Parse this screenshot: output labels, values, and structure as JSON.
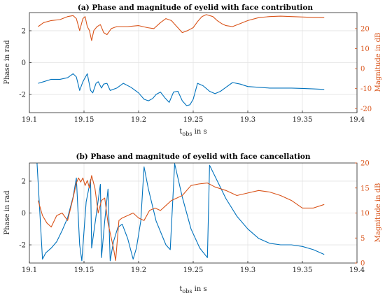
{
  "colors": {
    "left_series": "#0072bd",
    "right_series": "#d95319",
    "axes": "#262626",
    "grid": "#e3e3e3"
  },
  "chart_data": [
    {
      "type": "line",
      "title": "(a)  Phase and magnitude of eyelid with face contribution",
      "xlabel": "t",
      "xlabel_sub": "obs",
      "xlabel_suffix": " in s",
      "ylabel_left": "Phase in rad",
      "ylabel_right": "Magnitude in dB",
      "xlim": [
        19.1,
        19.4
      ],
      "xticks": [
        "19.1",
        "19.15",
        "19.2",
        "19.25",
        "19.3",
        "19.35",
        "19.4"
      ],
      "ylim_left": [
        -3.14,
        3.14
      ],
      "yticks_left": [
        "-2",
        "0",
        "2"
      ],
      "ylim_right": [
        -22,
        28
      ],
      "yticks_right": [
        "-20",
        "-10",
        "0",
        "10",
        "20"
      ],
      "grid": true,
      "series": [
        {
          "axis": "left",
          "x": [
            19.108,
            19.113,
            19.12,
            19.128,
            19.135,
            19.14,
            19.143,
            19.146,
            19.149,
            19.153,
            19.156,
            19.158,
            19.161,
            19.163,
            19.166,
            19.168,
            19.171,
            19.174,
            19.18,
            19.186,
            19.193,
            19.2,
            19.205,
            19.209,
            19.213,
            19.216,
            19.22,
            19.224,
            19.228,
            19.232,
            19.236,
            19.24,
            19.244,
            19.247,
            19.25,
            19.254,
            19.259,
            19.265,
            19.27,
            19.275,
            19.28,
            19.286,
            19.293,
            19.3,
            19.31,
            19.32,
            19.33,
            19.34,
            19.35,
            19.36,
            19.37
          ],
          "y": [
            -1.3,
            -1.2,
            -1.05,
            -1.05,
            -0.95,
            -0.7,
            -0.9,
            -1.75,
            -1.2,
            -0.7,
            -1.75,
            -1.9,
            -1.3,
            -1.2,
            -1.6,
            -1.35,
            -1.3,
            -1.75,
            -1.6,
            -1.3,
            -1.55,
            -1.9,
            -2.3,
            -2.4,
            -2.25,
            -2.0,
            -1.85,
            -2.2,
            -2.5,
            -1.85,
            -1.8,
            -2.4,
            -2.7,
            -2.65,
            -2.3,
            -1.3,
            -1.45,
            -1.8,
            -1.95,
            -1.8,
            -1.55,
            -1.25,
            -1.35,
            -1.5,
            -1.55,
            -1.6,
            -1.6,
            -1.6,
            -1.62,
            -1.65,
            -1.68
          ]
        },
        {
          "axis": "right",
          "x": [
            19.108,
            19.113,
            19.12,
            19.128,
            19.135,
            19.14,
            19.143,
            19.146,
            19.149,
            19.151,
            19.153,
            19.155,
            19.157,
            19.159,
            19.162,
            19.165,
            19.168,
            19.171,
            19.175,
            19.18,
            19.19,
            19.2,
            19.208,
            19.214,
            19.22,
            19.225,
            19.23,
            19.235,
            19.24,
            19.245,
            19.25,
            19.254,
            19.258,
            19.262,
            19.268,
            19.272,
            19.276,
            19.28,
            19.286,
            19.293,
            19.3,
            19.31,
            19.32,
            19.33,
            19.34,
            19.35,
            19.36,
            19.37
          ],
          "y": [
            21,
            23,
            24,
            24.5,
            26,
            26.5,
            25,
            19,
            25,
            26,
            21,
            19,
            14,
            19,
            21,
            22,
            18,
            17,
            20,
            21,
            21,
            21.5,
            20.5,
            20,
            23,
            25,
            24,
            21,
            18,
            19,
            20.5,
            23.5,
            26,
            27,
            26,
            24,
            22.5,
            21.5,
            21,
            22.5,
            24,
            25.5,
            26,
            26.2,
            26,
            25.8,
            25.6,
            25.5
          ]
        }
      ]
    },
    {
      "type": "line",
      "title": "(b) Phase and magnitude of eyelid with face cancellation",
      "xlabel": "t",
      "xlabel_sub": "obs",
      "xlabel_suffix": " in s",
      "ylabel_left": "Phase in rad",
      "ylabel_right": "Magnitude in dB",
      "xlim": [
        19.1,
        19.4
      ],
      "xticks": [
        "19.1",
        "19.15",
        "19.2",
        "19.25",
        "19.3",
        "19.35",
        "19.4"
      ],
      "ylim_left": [
        -3.14,
        3.14
      ],
      "yticks_left": [
        "-2",
        "0",
        "2"
      ],
      "ylim_right": [
        0,
        20
      ],
      "yticks_right": [
        "0",
        "5",
        "10",
        "15",
        "20"
      ],
      "grid": true,
      "series": [
        {
          "axis": "left",
          "x": [
            19.107,
            19.112,
            19.115,
            19.12,
            19.125,
            19.13,
            19.135,
            19.14,
            19.143,
            19.146,
            19.148,
            19.152,
            19.156,
            19.157,
            19.161,
            19.165,
            19.166,
            19.169,
            19.172,
            19.174,
            19.177,
            19.181,
            19.185,
            19.19,
            19.195,
            19.198,
            19.202,
            19.205,
            19.209,
            19.216,
            19.225,
            19.229,
            19.233,
            19.24,
            19.248,
            19.256,
            19.263,
            19.265,
            19.27,
            19.28,
            19.29,
            19.3,
            19.31,
            19.32,
            19.33,
            19.34,
            19.35,
            19.36,
            19.37
          ],
          "y": [
            3.14,
            -2.9,
            -2.5,
            -2.2,
            -1.8,
            -1.1,
            -0.3,
            1.0,
            2.2,
            -2.0,
            -3.0,
            0.7,
            2.1,
            -2.2,
            -0.2,
            1.8,
            -2.8,
            -0.5,
            1.5,
            -3.0,
            -1.8,
            -0.9,
            -0.7,
            -1.6,
            -2.9,
            -2.2,
            -0.5,
            2.9,
            1.5,
            -0.5,
            -2.0,
            -2.3,
            3.1,
            1.0,
            -1.0,
            -2.2,
            -2.8,
            3.0,
            2.3,
            0.9,
            -0.2,
            -1.0,
            -1.6,
            -1.9,
            -2.0,
            -2.0,
            -2.1,
            -2.3,
            -2.6
          ]
        },
        {
          "axis": "right",
          "x": [
            19.108,
            19.112,
            19.116,
            19.12,
            19.125,
            19.13,
            19.135,
            19.14,
            19.143,
            19.145,
            19.147,
            19.149,
            19.151,
            19.153,
            19.155,
            19.157,
            19.16,
            19.163,
            19.166,
            19.169,
            19.172,
            19.174,
            19.177,
            19.179,
            19.182,
            19.185,
            19.19,
            19.195,
            19.2,
            19.205,
            19.21,
            19.215,
            19.22,
            19.225,
            19.23,
            19.235,
            19.24,
            19.248,
            19.255,
            19.263,
            19.27,
            19.28,
            19.29,
            19.3,
            19.31,
            19.32,
            19.33,
            19.34,
            19.35,
            19.36,
            19.37
          ],
          "y": [
            12.5,
            9.5,
            8.0,
            7.2,
            9.5,
            10.0,
            8.5,
            13.0,
            16.0,
            17.0,
            16.2,
            17.0,
            15.5,
            16.5,
            15.0,
            17.5,
            15.0,
            10.0,
            12.5,
            13.0,
            8.0,
            6.0,
            3.0,
            0.5,
            8.5,
            9.0,
            9.5,
            10.0,
            9.0,
            8.5,
            10.5,
            11.0,
            10.5,
            11.5,
            12.5,
            13.0,
            13.5,
            15.5,
            15.8,
            16.0,
            15.2,
            14.5,
            13.5,
            14.0,
            14.5,
            14.2,
            13.5,
            12.5,
            11.0,
            11.0,
            11.7
          ]
        }
      ]
    }
  ]
}
